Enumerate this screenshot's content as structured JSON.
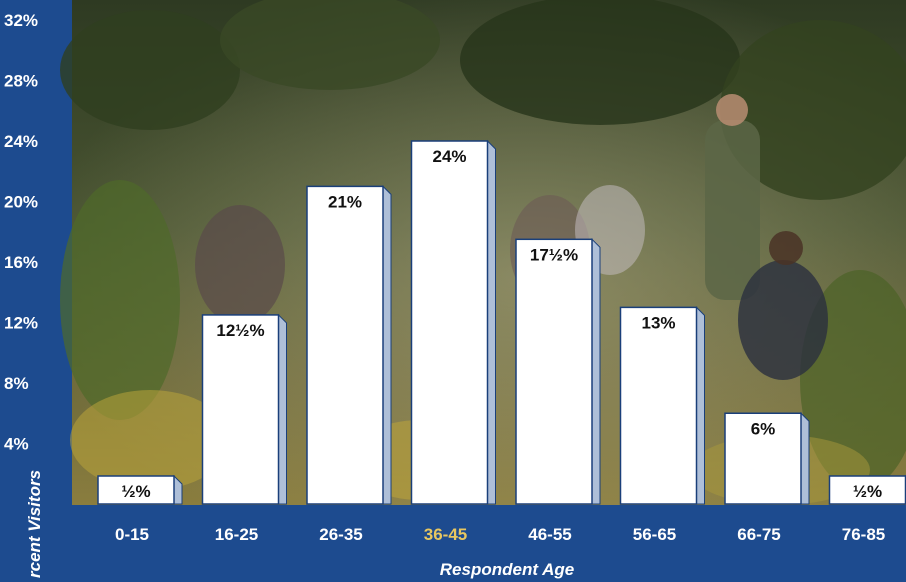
{
  "chart_data": {
    "type": "bar",
    "title": "",
    "xlabel": "Respondent Age",
    "ylabel": "Percent of Visitors",
    "ylabel_visible": "rcent Visitors",
    "categories": [
      "0-15",
      "16-25",
      "26-35",
      "36-45",
      "46-55",
      "56-65",
      "66-75",
      "76-85"
    ],
    "values": [
      0.5,
      12.5,
      21,
      24,
      17.5,
      13,
      6,
      0.5
    ],
    "data_labels": [
      "½%",
      "12½%",
      "21%",
      "24%",
      "17½%",
      "13%",
      "6%",
      "½%"
    ],
    "highlight_category": "36-45",
    "yticks": [
      "32%",
      "28%",
      "24%",
      "20%",
      "16%",
      "12%",
      "8%",
      "4%"
    ],
    "ytick_values": [
      32,
      28,
      24,
      20,
      16,
      12,
      8,
      4
    ],
    "ylim": [
      0,
      32
    ],
    "grid": false,
    "background": "photo of a ranger-led group seated in a wooded meadow"
  },
  "colors": {
    "frame": "#1d4b8f",
    "bar_face": "#ffffff",
    "bar_side": "#aebfd8",
    "bar_outline": "#1a3f7a",
    "highlight_label": "#e8c760",
    "text": "#ffffff"
  }
}
